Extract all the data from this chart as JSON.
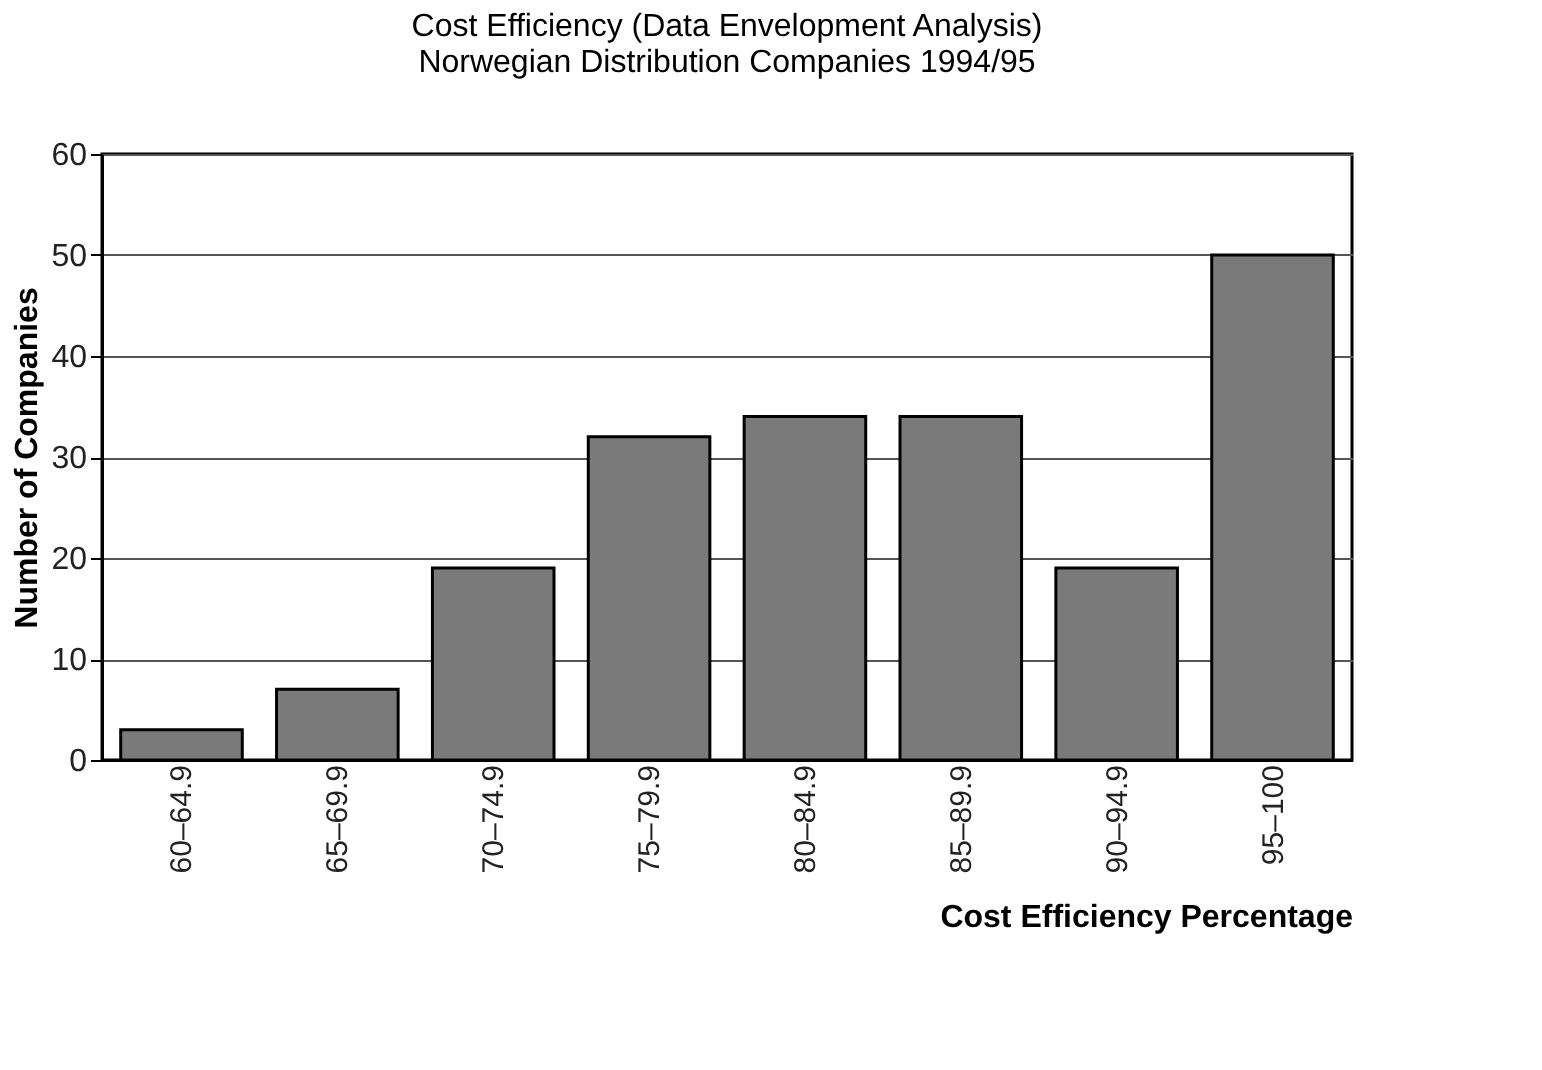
{
  "chart_data": {
    "type": "bar",
    "title": [
      "Cost Efficiency (Data Envelopment Analysis)",
      "Norwegian Distribution Companies 1994/95"
    ],
    "xlabel": "Cost Efficiency Percentage",
    "ylabel": "Number of Companies",
    "categories": [
      "60–64.9",
      "65–69.9",
      "70–74.9",
      "75–79.9",
      "80–84.9",
      "85–89.9",
      "90–94.9",
      "95–100"
    ],
    "values": [
      3,
      7,
      19,
      32,
      34,
      34,
      19,
      50
    ],
    "color": "#7a7a7a",
    "ylim": [
      0,
      60
    ],
    "yticks": [
      0,
      10,
      20,
      30,
      40,
      50,
      60
    ],
    "grid": "y"
  }
}
